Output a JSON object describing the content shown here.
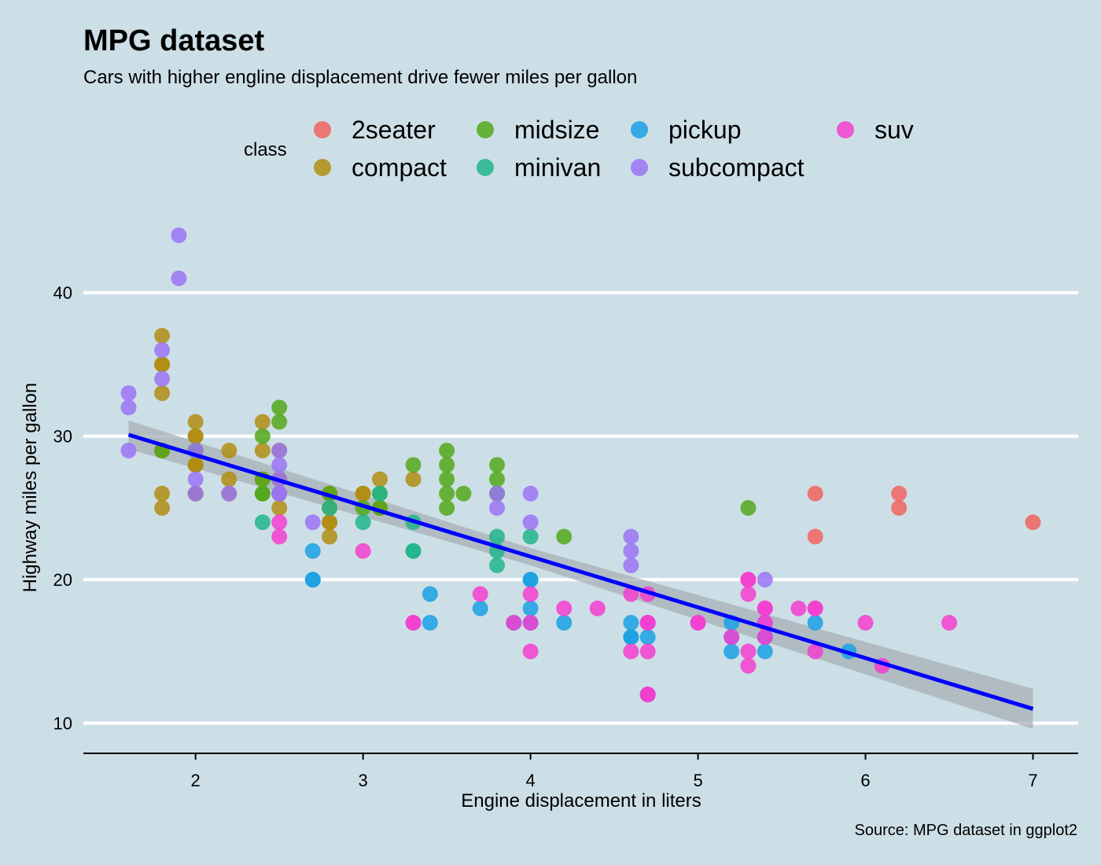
{
  "chart_data": {
    "type": "scatter",
    "title": "MPG dataset",
    "subtitle": "Cars with higher engline displacement drive fewer miles per gallon",
    "xlabel": "Engine displacement in liters",
    "ylabel": "Highway miles per gallon",
    "caption": "Source: MPG dataset in ggplot2",
    "xlim": [
      1.33,
      7.27
    ],
    "ylim": [
      7.9,
      45.6
    ],
    "x_ticks": [
      2,
      3,
      4,
      5,
      6,
      7
    ],
    "y_ticks": [
      10,
      20,
      30,
      40
    ],
    "grid": "horizontal major",
    "legend": {
      "title": "class",
      "position": "top",
      "entries": [
        {
          "name": "2seater",
          "color": "#f0645e"
        },
        {
          "name": "compact",
          "color": "#b08d12"
        },
        {
          "name": "midsize",
          "color": "#52a81a"
        },
        {
          "name": "minivan",
          "color": "#21b58a"
        },
        {
          "name": "pickup",
          "color": "#1aa1e3"
        },
        {
          "name": "subcompact",
          "color": "#9a74f5"
        },
        {
          "name": "suv",
          "color": "#f33ecf"
        }
      ]
    },
    "trend": {
      "method": "lm",
      "line_color": "#0000ff",
      "band_color": "#a6b0b6",
      "points": [
        [
          1.6,
          30.1
        ],
        [
          7.0,
          11.0
        ]
      ],
      "band": [
        [
          1.6,
          29.1,
          31.1
        ],
        [
          4.0,
          21.0,
          22.2
        ],
        [
          7.0,
          9.6,
          12.4
        ]
      ]
    },
    "series": [
      {
        "name": "2seater",
        "points": [
          [
            5.7,
            26
          ],
          [
            5.7,
            23
          ],
          [
            6.2,
            26
          ],
          [
            6.2,
            25
          ],
          [
            7.0,
            24
          ]
        ]
      },
      {
        "name": "compact",
        "points": [
          [
            1.8,
            29
          ],
          [
            1.8,
            29
          ],
          [
            2.0,
            31
          ],
          [
            2.0,
            30
          ],
          [
            2.8,
            26
          ],
          [
            2.8,
            26
          ],
          [
            3.1,
            27
          ],
          [
            1.8,
            26
          ],
          [
            1.8,
            25
          ],
          [
            2.0,
            28
          ],
          [
            2.0,
            28
          ],
          [
            2.8,
            25
          ],
          [
            2.8,
            25
          ],
          [
            3.1,
            25
          ],
          [
            3.1,
            25
          ],
          [
            2.8,
            24
          ],
          [
            2.8,
            23
          ],
          [
            2.2,
            26
          ],
          [
            2.2,
            27
          ],
          [
            2.4,
            29
          ],
          [
            2.4,
            31
          ],
          [
            2.5,
            27
          ],
          [
            2.5,
            27
          ],
          [
            2.2,
            29
          ],
          [
            1.8,
            33
          ],
          [
            1.8,
            35
          ],
          [
            1.8,
            37
          ],
          [
            1.8,
            35
          ],
          [
            2.0,
            29
          ],
          [
            2.0,
            26
          ],
          [
            2.0,
            26
          ],
          [
            2.5,
            26
          ],
          [
            2.5,
            25
          ],
          [
            2.8,
            24
          ],
          [
            3.0,
            26
          ],
          [
            3.3,
            27
          ],
          [
            2.4,
            27
          ],
          [
            3.0,
            26
          ],
          [
            2.0,
            30
          ],
          [
            2.0,
            28
          ],
          [
            2.5,
            29
          ]
        ]
      },
      {
        "name": "midsize",
        "points": [
          [
            1.8,
            29
          ],
          [
            2.0,
            29
          ],
          [
            2.8,
            26
          ],
          [
            3.1,
            26
          ],
          [
            2.4,
            30
          ],
          [
            3.1,
            25
          ],
          [
            3.8,
            26
          ],
          [
            3.8,
            26
          ],
          [
            3.8,
            28
          ],
          [
            5.3,
            25
          ],
          [
            2.4,
            26
          ],
          [
            2.4,
            26
          ],
          [
            2.5,
            32
          ],
          [
            2.5,
            31
          ],
          [
            3.3,
            28
          ],
          [
            3.5,
            25
          ],
          [
            3.5,
            28
          ],
          [
            2.4,
            27
          ],
          [
            3.0,
            25
          ],
          [
            3.5,
            26
          ],
          [
            3.5,
            29
          ],
          [
            3.8,
            27
          ],
          [
            4.2,
            23
          ],
          [
            2.5,
            26
          ],
          [
            3.5,
            27
          ],
          [
            3.6,
            26
          ]
        ]
      },
      {
        "name": "minivan",
        "points": [
          [
            2.4,
            24
          ],
          [
            3.0,
            24
          ],
          [
            3.3,
            22
          ],
          [
            3.3,
            22
          ],
          [
            3.3,
            24
          ],
          [
            3.8,
            22
          ],
          [
            3.8,
            21
          ],
          [
            3.8,
            23
          ],
          [
            4.0,
            23
          ],
          [
            3.1,
            26
          ],
          [
            2.8,
            25
          ]
        ]
      },
      {
        "name": "pickup",
        "points": [
          [
            2.7,
            20
          ],
          [
            2.7,
            20
          ],
          [
            2.7,
            22
          ],
          [
            3.4,
            17
          ],
          [
            3.4,
            19
          ],
          [
            3.7,
            18
          ],
          [
            4.7,
            16
          ],
          [
            4.7,
            12
          ],
          [
            4.7,
            17
          ],
          [
            5.2,
            16
          ],
          [
            5.2,
            15
          ],
          [
            5.7,
            17
          ],
          [
            5.9,
            15
          ],
          [
            4.0,
            20
          ],
          [
            4.0,
            17
          ],
          [
            4.0,
            18
          ],
          [
            4.0,
            20
          ],
          [
            4.2,
            17
          ],
          [
            4.6,
            16
          ],
          [
            4.6,
            17
          ],
          [
            4.6,
            16
          ],
          [
            5.4,
            15
          ],
          [
            5.4,
            16
          ],
          [
            3.9,
            17
          ],
          [
            5.2,
            17
          ]
        ]
      },
      {
        "name": "subcompact",
        "points": [
          [
            1.6,
            33
          ],
          [
            1.6,
            32
          ],
          [
            1.6,
            29
          ],
          [
            1.8,
            34
          ],
          [
            1.8,
            36
          ],
          [
            2.0,
            27
          ],
          [
            2.0,
            26
          ],
          [
            2.2,
            26
          ],
          [
            2.5,
            29
          ],
          [
            2.5,
            28
          ],
          [
            2.5,
            26
          ],
          [
            2.7,
            24
          ],
          [
            2.0,
            29
          ],
          [
            2.5,
            27
          ],
          [
            2.5,
            26
          ],
          [
            1.9,
            44
          ],
          [
            1.9,
            41
          ],
          [
            3.8,
            25
          ],
          [
            4.0,
            24
          ],
          [
            4.0,
            26
          ],
          [
            4.6,
            22
          ],
          [
            4.6,
            23
          ],
          [
            4.6,
            21
          ],
          [
            5.4,
            20
          ],
          [
            5.4,
            17
          ],
          [
            3.8,
            26
          ]
        ]
      },
      {
        "name": "suv",
        "points": [
          [
            2.5,
            23
          ],
          [
            2.5,
            24
          ],
          [
            3.0,
            22
          ],
          [
            3.3,
            17
          ],
          [
            3.3,
            17
          ],
          [
            3.7,
            19
          ],
          [
            3.9,
            17
          ],
          [
            4.0,
            19
          ],
          [
            4.0,
            17
          ],
          [
            4.0,
            15
          ],
          [
            4.2,
            18
          ],
          [
            4.4,
            18
          ],
          [
            4.6,
            19
          ],
          [
            4.6,
            15
          ],
          [
            4.7,
            15
          ],
          [
            4.7,
            17
          ],
          [
            4.7,
            19
          ],
          [
            4.7,
            12
          ],
          [
            4.7,
            17
          ],
          [
            5.0,
            17
          ],
          [
            5.2,
            16
          ],
          [
            5.3,
            20
          ],
          [
            5.3,
            19
          ],
          [
            5.3,
            15
          ],
          [
            5.3,
            14
          ],
          [
            5.4,
            18
          ],
          [
            5.4,
            17
          ],
          [
            5.4,
            16
          ],
          [
            5.6,
            18
          ],
          [
            5.7,
            18
          ],
          [
            5.7,
            15
          ],
          [
            6.0,
            17
          ],
          [
            6.1,
            14
          ],
          [
            6.5,
            17
          ],
          [
            4.7,
            12
          ],
          [
            5.0,
            17
          ],
          [
            5.3,
            20
          ],
          [
            5.4,
            18
          ],
          [
            5.7,
            18
          ]
        ]
      }
    ]
  }
}
